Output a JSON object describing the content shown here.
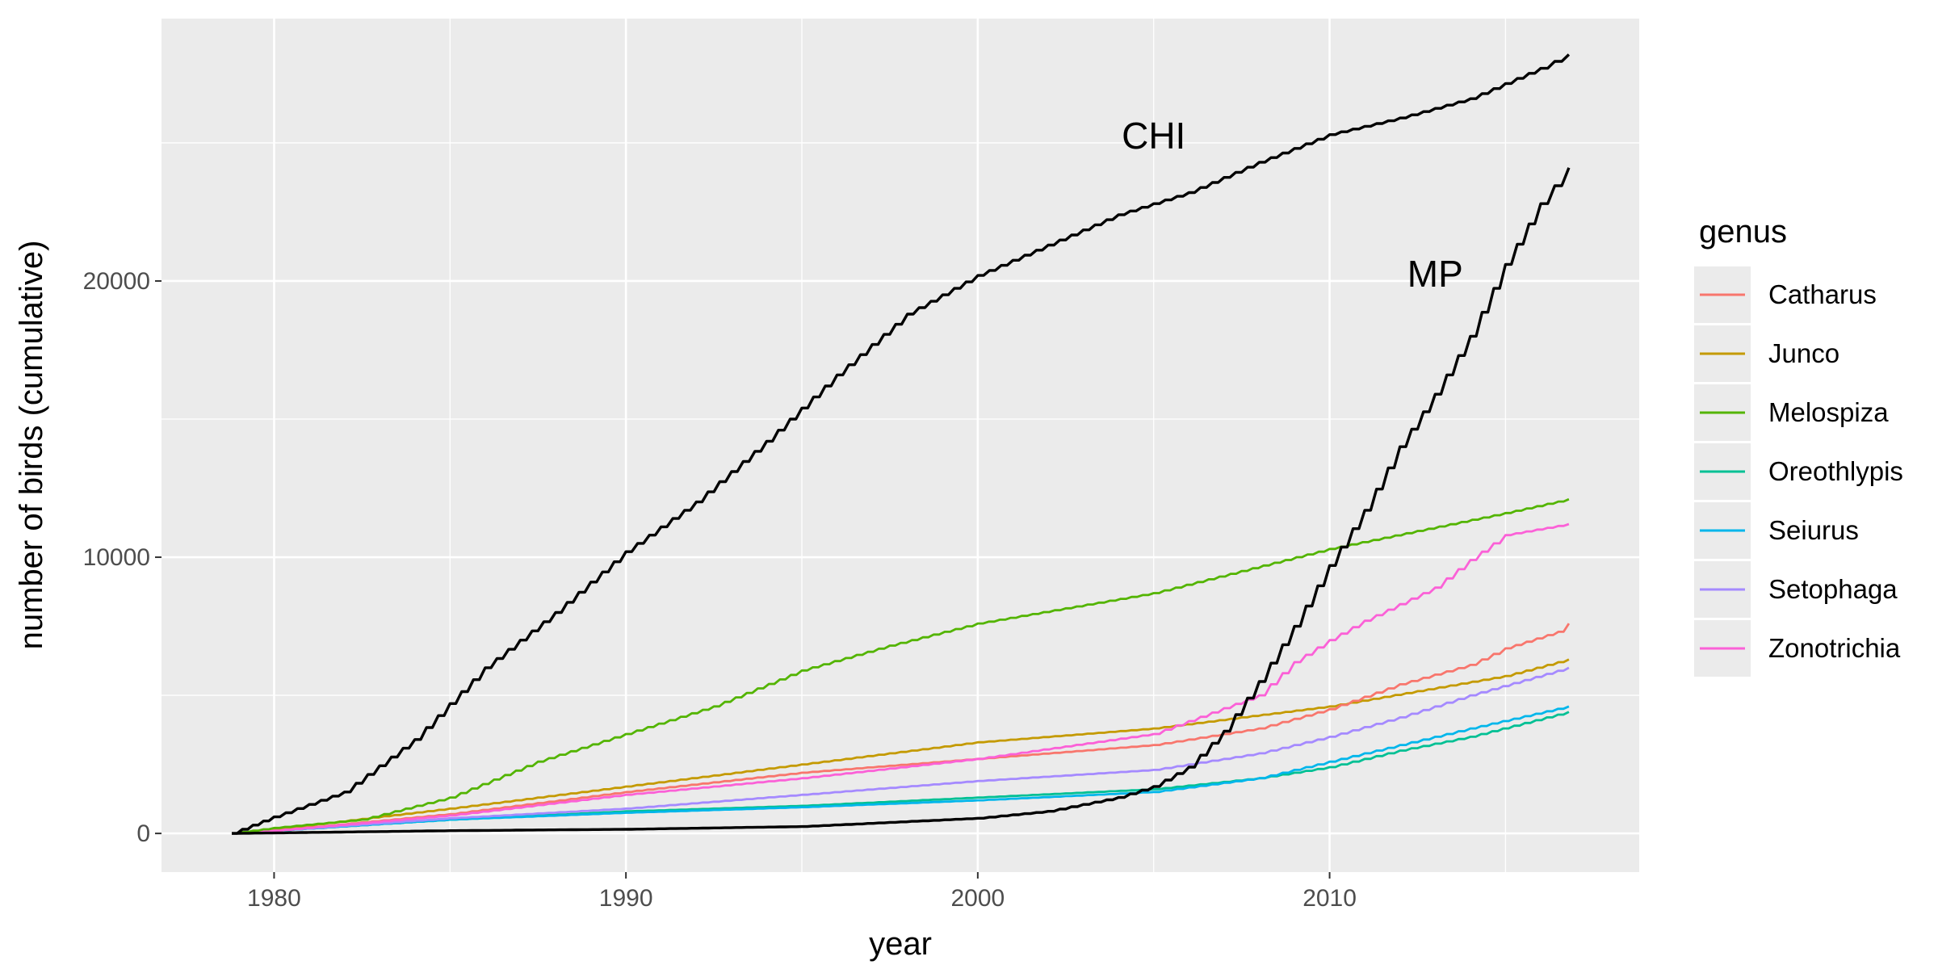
{
  "chart_data": {
    "type": "line",
    "title": "",
    "xlabel": "year",
    "ylabel": "number of birds (cumulative)",
    "xlim": [
      1976.8,
      2018.8
    ],
    "ylim": [
      -1400,
      29500
    ],
    "x_ticks": [
      1980,
      1990,
      2000,
      2010
    ],
    "x_tick_labels": [
      "1980",
      "1990",
      "2000",
      "2010"
    ],
    "y_ticks": [
      0,
      10000,
      20000
    ],
    "y_tick_labels": [
      "0",
      "10000",
      "20000"
    ],
    "grid": true,
    "background": "#ebebeb",
    "legend": {
      "title": "genus",
      "placement": "right"
    },
    "series": [
      {
        "name": "Catharus",
        "color": "#F8766D",
        "legend": true,
        "x": [
          1978.8,
          1980,
          1985,
          1990,
          1995,
          2000,
          2005,
          2008,
          2010,
          2012,
          2014,
          2015,
          2016.5,
          2016.8
        ],
        "y": [
          0,
          100,
          700,
          1500,
          2200,
          2700,
          3200,
          3800,
          4500,
          5400,
          6100,
          6700,
          7300,
          7600
        ]
      },
      {
        "name": "Junco",
        "color": "#C49A00",
        "legend": true,
        "x": [
          1978.8,
          1980,
          1985,
          1990,
          1995,
          2000,
          2005,
          2010,
          2015,
          2016.8
        ],
        "y": [
          0,
          150,
          900,
          1700,
          2500,
          3300,
          3800,
          4600,
          5700,
          6300
        ]
      },
      {
        "name": "Melospiza",
        "color": "#53B400",
        "legend": true,
        "x": [
          1978.8,
          1980,
          1982.5,
          1985,
          1987.5,
          1990,
          1992.5,
          1995,
          1997.5,
          2000,
          2005,
          2010,
          2015,
          2016.8
        ],
        "y": [
          0,
          200,
          500,
          1300,
          2600,
          3600,
          4600,
          5900,
          6800,
          7600,
          8700,
          10300,
          11600,
          12100
        ]
      },
      {
        "name": "Oreothlypis",
        "color": "#00C094",
        "legend": true,
        "x": [
          1978.8,
          1980,
          1985,
          1990,
          1995,
          2000,
          2005,
          2008,
          2010,
          2012,
          2014,
          2016.8
        ],
        "y": [
          0,
          100,
          500,
          800,
          1000,
          1300,
          1600,
          2000,
          2400,
          3000,
          3500,
          4400
        ]
      },
      {
        "name": "Seiurus",
        "color": "#00B6EB",
        "legend": true,
        "x": [
          1978.8,
          1980,
          1985,
          1990,
          1995,
          2000,
          2005,
          2008,
          2010,
          2012,
          2014,
          2016.8
        ],
        "y": [
          0,
          100,
          500,
          750,
          950,
          1200,
          1500,
          2000,
          2600,
          3200,
          3800,
          4600
        ]
      },
      {
        "name": "Setophaga",
        "color": "#A58AFF",
        "legend": true,
        "x": [
          1978.8,
          1980,
          1985,
          1990,
          1995,
          2000,
          2005,
          2008,
          2010,
          2012,
          2014,
          2016.8
        ],
        "y": [
          0,
          100,
          550,
          900,
          1400,
          1900,
          2300,
          2900,
          3500,
          4200,
          5000,
          6000
        ]
      },
      {
        "name": "Zonotrichia",
        "color": "#FB61D7",
        "legend": true,
        "x": [
          1978.8,
          1980,
          1985,
          1990,
          1995,
          2000,
          2005,
          2008,
          2009,
          2010,
          2011,
          2012,
          2013,
          2014,
          2015,
          2016.8
        ],
        "y": [
          0,
          100,
          650,
          1400,
          2000,
          2700,
          3600,
          5000,
          6200,
          7000,
          7700,
          8300,
          8900,
          9900,
          10800,
          11200
        ]
      },
      {
        "name": "CHI",
        "color": "#000000",
        "legend": false,
        "x": [
          1978.8,
          1980,
          1982,
          1984,
          1986,
          1988,
          1990,
          1992,
          1994,
          1996,
          1998,
          2000,
          2002,
          2004,
          2006,
          2008,
          2010,
          2012,
          2014,
          2016,
          2016.8
        ],
        "y": [
          0,
          600,
          1500,
          3400,
          6000,
          8000,
          10200,
          12000,
          14200,
          16600,
          18800,
          20200,
          21300,
          22400,
          23200,
          24300,
          25300,
          25900,
          26600,
          27700,
          28200
        ]
      },
      {
        "name": "MP",
        "color": "#000000",
        "legend": false,
        "x": [
          1978.8,
          1985,
          1990,
          1995,
          2000,
          2002,
          2004,
          2005,
          2006,
          2007,
          2008,
          2009,
          2010,
          2011,
          2012,
          2013,
          2014,
          2015,
          2016,
          2016.8
        ],
        "y": [
          0,
          100,
          150,
          250,
          550,
          800,
          1300,
          1700,
          2400,
          3700,
          5500,
          7500,
          9700,
          11700,
          14000,
          15900,
          18000,
          20600,
          22800,
          24100
        ]
      }
    ],
    "annotations": [
      {
        "text": "CHI",
        "x": 2005.0,
        "y": 24800
      },
      {
        "text": "MP",
        "x": 2013.0,
        "y": 19800
      }
    ]
  }
}
